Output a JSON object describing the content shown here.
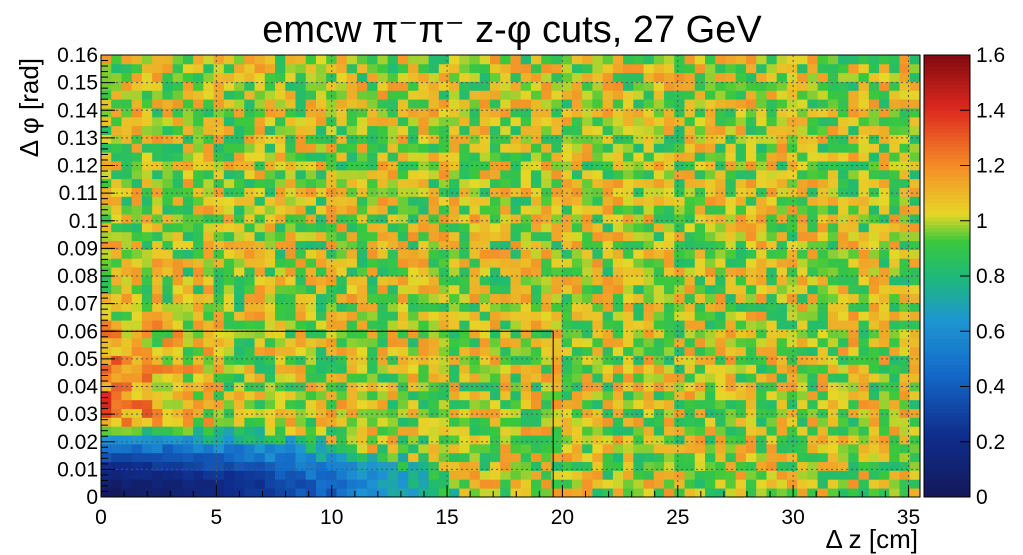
{
  "chart_data": {
    "type": "heatmap",
    "title": "emcw π⁻π⁻  z-φ cuts, 27 GeV",
    "xlabel": "Δ z [cm]",
    "ylabel": "Δ φ [rad]",
    "xlim": [
      0,
      35.5
    ],
    "ylim": [
      0,
      0.16
    ],
    "x_ticks": [
      "0",
      "5",
      "10",
      "15",
      "20",
      "25",
      "30",
      "35"
    ],
    "y_ticks": [
      "0",
      "0.01",
      "0.02",
      "0.03",
      "0.04",
      "0.05",
      "0.06",
      "0.07",
      "0.08",
      "0.09",
      "0.1",
      "0.11",
      "0.12",
      "0.13",
      "0.14",
      "0.15",
      "0.16"
    ],
    "z_range": [
      0,
      1.6
    ],
    "z_ticks": [
      "0",
      "0.2",
      "0.4",
      "0.6",
      "0.8",
      "1",
      "1.2",
      "1.4",
      "1.6"
    ],
    "grid": true,
    "colorbar": "right",
    "bins": {
      "nx": 80,
      "ny": 50
    },
    "description_values": {
      "background_mean": 1.0,
      "suppression_region": {
        "dz_max": 15,
        "dphi_max": 0.025,
        "min_value": 0.0
      },
      "enhancement_region": {
        "dz_max": 5,
        "dphi_range": [
          0.025,
          0.06
        ],
        "peak_value": 1.3
      }
    },
    "cut_box": {
      "dz_max": 19.6,
      "dphi_max": 0.06
    }
  }
}
